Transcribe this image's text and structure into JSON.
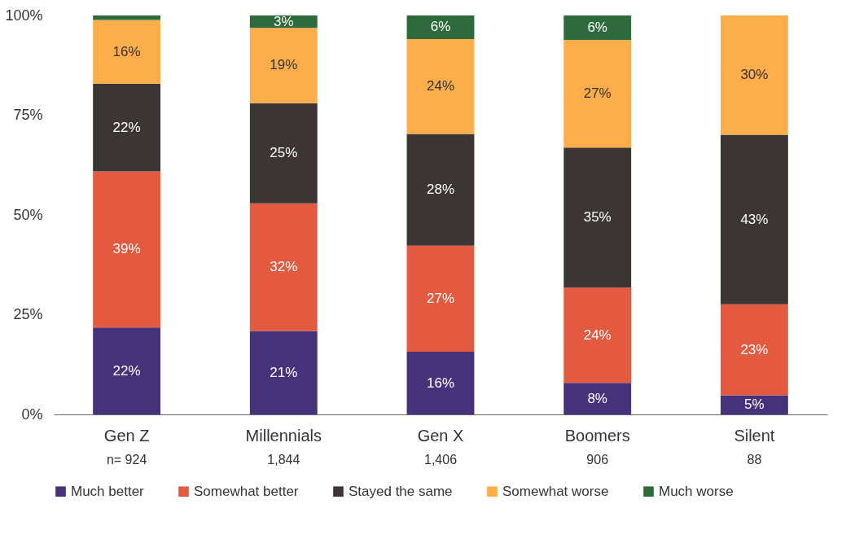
{
  "chart_data": {
    "type": "bar",
    "stacked": true,
    "categories": [
      "Gen Z",
      "Millennials",
      "Gen X",
      "Boomers",
      "Silent"
    ],
    "series": [
      {
        "name": "Much better",
        "color": "#46327a",
        "values": [
          21.8,
          20.9,
          15.7,
          7.9,
          4.8
        ],
        "value_labels": [
          "22%",
          "21%",
          "16%",
          "8%",
          "5%"
        ]
      },
      {
        "name": "Somewhat better",
        "color": "#e45a40",
        "values": [
          39.1,
          32,
          26.6,
          23.9,
          22.8
        ],
        "value_labels": [
          "39%",
          "32%",
          "27%",
          "24%",
          "23%"
        ]
      },
      {
        "name": "Stayed the same",
        "color": "#3b3634",
        "values": [
          22,
          25.1,
          28,
          35.1,
          42.5
        ],
        "value_labels": [
          "22%",
          "25%",
          "28%",
          "35%",
          "43%"
        ]
      },
      {
        "name": "Somewhat worse",
        "color": "#fdae4b",
        "values": [
          16,
          18.9,
          23.8,
          27,
          29.9
        ],
        "value_labels": [
          "16%",
          "19%",
          "24%",
          "27%",
          "30%"
        ]
      },
      {
        "name": "Much worse",
        "color": "#2e6b3c",
        "values": [
          1.1,
          3.1,
          5.9,
          6.1,
          0
        ],
        "value_labels": [
          null,
          "3%",
          "6%",
          "6%",
          null
        ]
      }
    ],
    "ylim": [
      0,
      100
    ],
    "yticks": [
      {
        "value": 0,
        "label": "0%"
      },
      {
        "value": 25,
        "label": "25%"
      },
      {
        "value": 50,
        "label": "50%"
      },
      {
        "value": 75,
        "label": "75%"
      },
      {
        "value": 100,
        "label": "100%"
      }
    ],
    "annotations": [
      "n= 924",
      "1,844",
      "1,406",
      "906",
      "88"
    ],
    "legend": "bottom",
    "grid": false
  }
}
